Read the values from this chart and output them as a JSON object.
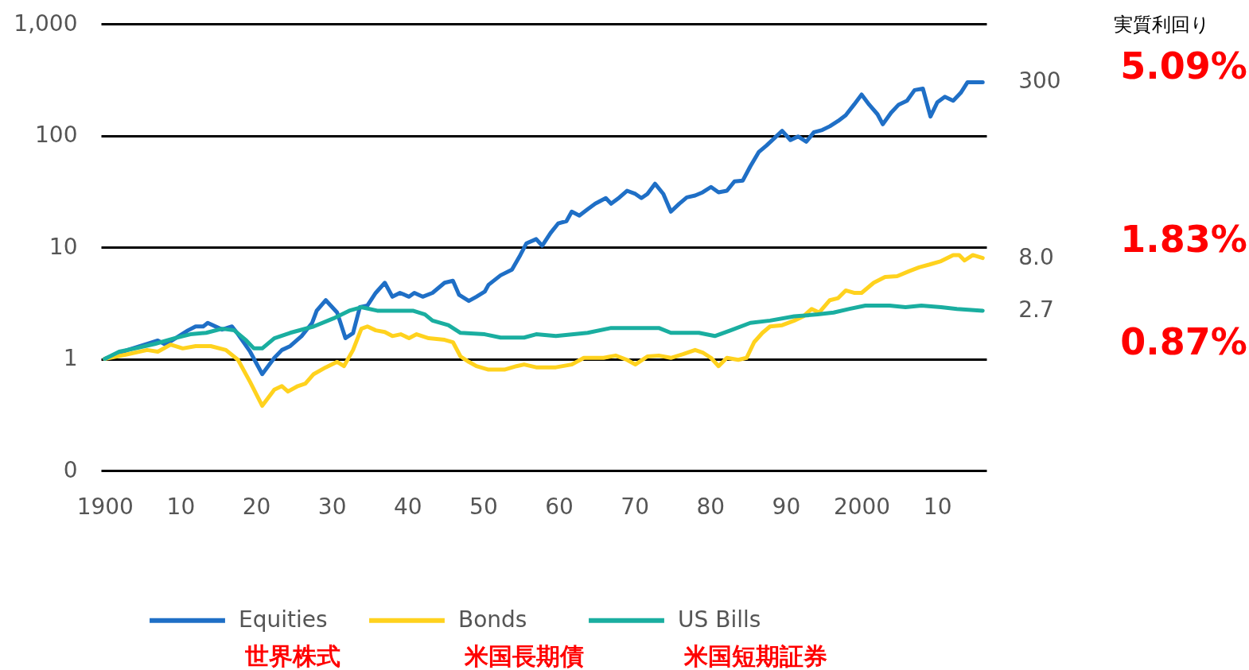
{
  "chart_data": {
    "type": "line",
    "log": "y",
    "grid": "y",
    "legend": "bottom",
    "line_style": "solid",
    "marker": "none",
    "xlim": [
      1899.5,
      2016.5
    ],
    "xticks": [
      1900,
      {
        "value": 1910,
        "label": "10"
      },
      {
        "value": 1920,
        "label": "20"
      },
      {
        "value": 1930,
        "label": "30"
      },
      {
        "value": 1940,
        "label": "40"
      },
      {
        "value": 1950,
        "label": "50"
      },
      {
        "value": 1960,
        "label": "60"
      },
      {
        "value": 1970,
        "label": "70"
      },
      {
        "value": 1980,
        "label": "80"
      },
      {
        "value": 1990,
        "label": "90"
      },
      2000,
      {
        "value": 2010,
        "label": "10"
      }
    ],
    "ylim": [
      0.1,
      1000
    ],
    "yticks": [
      {
        "value": 0.1,
        "label": "0"
      },
      1,
      10,
      100,
      {
        "value": 1000,
        "label": "1,000"
      }
    ],
    "series": [
      {
        "name": "Equities",
        "color": "#1f6fc6",
        "x": [
          1900,
          1903,
          1905.6,
          1907,
          1908,
          1911,
          1912,
          1913,
          1913.6,
          1915.5,
          1916.8,
          1917.6,
          1919.2,
          1920.8,
          1922.4,
          1923.4,
          1924.5,
          1926,
          1927.4,
          1928,
          1929.2,
          1930.7,
          1931.8,
          1932.8,
          1933.7,
          1934.7,
          1935.8,
          1937,
          1938,
          1939,
          1940.2,
          1940.9,
          1942,
          1943.3,
          1944.9,
          1946,
          1946.8,
          1948.1,
          1949.1,
          1950.2,
          1950.7,
          1952.3,
          1953.8,
          1954.9,
          1955.7,
          1957,
          1957.8,
          1958.9,
          1959.9,
          1961,
          1961.7,
          1962.7,
          1963.8,
          1964.8,
          1966.2,
          1966.9,
          1968,
          1969,
          1970.1,
          1970.9,
          1971.7,
          1972.7,
          1973.8,
          1974.8,
          1975.9,
          1976.9,
          1978,
          1979,
          1980.1,
          1981.1,
          1982.2,
          1983.2,
          1984.3,
          1985.3,
          1986.4,
          1987.4,
          1988.5,
          1989.5,
          1990.6,
          1991.6,
          1992.7,
          1993.7,
          1994.8,
          1995.8,
          1996.9,
          1997.9,
          1999,
          2000,
          2001,
          2002.1,
          2002.8,
          2003.9,
          2004.9,
          2006,
          2007,
          2008.1,
          2009.1,
          2010,
          2011,
          2012.1,
          2013.1,
          2014,
          2016
        ],
        "values": [
          1,
          1.2,
          1.36,
          1.46,
          1.34,
          1.8,
          1.95,
          1.95,
          2.1,
          1.83,
          1.95,
          1.66,
          1.16,
          0.73,
          1.02,
          1.2,
          1.3,
          1.6,
          2.1,
          2.7,
          3.35,
          2.6,
          1.53,
          1.7,
          2.9,
          3.0,
          3.9,
          4.8,
          3.6,
          3.9,
          3.6,
          3.9,
          3.6,
          3.9,
          4.8,
          5.0,
          3.75,
          3.3,
          3.6,
          4.0,
          4.6,
          5.6,
          6.3,
          8.5,
          10.8,
          11.8,
          10.3,
          13.4,
          16.3,
          17.1,
          20.8,
          19.2,
          21.9,
          24.5,
          27.5,
          24.5,
          27.9,
          32,
          30,
          27.5,
          30,
          37,
          30,
          20.8,
          24.5,
          27.9,
          29,
          31,
          34.6,
          31,
          32,
          38.8,
          39.5,
          53,
          71,
          81,
          95,
          110,
          91,
          98,
          88,
          107,
          112,
          121,
          135,
          152,
          189,
          233,
          189,
          155,
          126,
          160,
          189,
          205,
          255,
          263,
          148,
          198,
          222,
          205,
          241,
          300,
          300
        ]
      },
      {
        "name": "Bonds",
        "color": "#ffd21e",
        "x": [
          1900,
          1903,
          1905.6,
          1907,
          1908.7,
          1910.3,
          1912,
          1914,
          1916,
          1917.6,
          1919.2,
          1920.8,
          1922.4,
          1923.4,
          1924.2,
          1925.5,
          1926.5,
          1927.6,
          1929.2,
          1930.7,
          1931.6,
          1932.8,
          1933.9,
          1934.7,
          1935.8,
          1937,
          1938,
          1939.1,
          1940.2,
          1941.2,
          1942.8,
          1944.9,
          1946,
          1947,
          1948.1,
          1949.1,
          1950.7,
          1952.8,
          1954.4,
          1955.4,
          1957,
          1959.6,
          1961.7,
          1963.3,
          1965.9,
          1967.5,
          1969,
          1970.1,
          1971.7,
          1973.2,
          1974.8,
          1976.4,
          1978,
          1979,
          1980.1,
          1981.1,
          1982.2,
          1983.7,
          1984.8,
          1985.8,
          1986.9,
          1987.9,
          1989.5,
          1991.1,
          1992.3,
          1993.4,
          1994.4,
          1995.8,
          1996.9,
          1997.9,
          1999,
          2000,
          2001.6,
          2003.1,
          2004.7,
          2006.3,
          2007.6,
          2009,
          2010.5,
          2012.1,
          2012.9,
          2013.6,
          2014.7,
          2016
        ],
        "values": [
          1,
          1.1,
          1.2,
          1.16,
          1.34,
          1.24,
          1.3,
          1.3,
          1.2,
          0.98,
          0.62,
          0.38,
          0.53,
          0.57,
          0.51,
          0.57,
          0.6,
          0.73,
          0.84,
          0.94,
          0.86,
          1.2,
          1.86,
          1.95,
          1.8,
          1.74,
          1.6,
          1.66,
          1.53,
          1.66,
          1.53,
          1.48,
          1.41,
          1.05,
          0.94,
          0.86,
          0.8,
          0.8,
          0.86,
          0.89,
          0.84,
          0.84,
          0.89,
          1.02,
          1.02,
          1.07,
          0.98,
          0.89,
          1.05,
          1.07,
          1.02,
          1.1,
          1.2,
          1.14,
          1.02,
          0.86,
          1.02,
          0.98,
          1.02,
          1.41,
          1.71,
          1.95,
          2.0,
          2.2,
          2.4,
          2.8,
          2.6,
          3.35,
          3.5,
          4.1,
          3.9,
          3.9,
          4.8,
          5.4,
          5.5,
          6.1,
          6.6,
          7.0,
          7.5,
          8.5,
          8.5,
          7.6,
          8.5,
          8.0
        ]
      },
      {
        "name": "US Bills",
        "color": "#1aaea0",
        "x": [
          1900,
          1901.9,
          1904,
          1906.6,
          1909.2,
          1911.3,
          1913.4,
          1915.5,
          1917.1,
          1918.7,
          1919.7,
          1920.8,
          1922.4,
          1924.5,
          1927.6,
          1930.2,
          1932.3,
          1933.9,
          1936,
          1940.7,
          1942.3,
          1943.3,
          1945.4,
          1947,
          1950.2,
          1952.3,
          1955.4,
          1957,
          1959.6,
          1963.8,
          1966.9,
          1973.2,
          1974.8,
          1978.5,
          1980.6,
          1982.7,
          1985.3,
          1987.9,
          1991.1,
          1994.2,
          1996.3,
          1998.4,
          2000.5,
          2003.7,
          2005.8,
          2007.9,
          2010.5,
          2012.6,
          2016
        ],
        "values": [
          1,
          1.16,
          1.24,
          1.36,
          1.53,
          1.66,
          1.71,
          1.86,
          1.8,
          1.46,
          1.24,
          1.24,
          1.53,
          1.71,
          1.95,
          2.3,
          2.7,
          2.9,
          2.7,
          2.7,
          2.5,
          2.2,
          2.0,
          1.71,
          1.66,
          1.55,
          1.55,
          1.66,
          1.6,
          1.71,
          1.89,
          1.89,
          1.71,
          1.71,
          1.6,
          1.8,
          2.1,
          2.2,
          2.4,
          2.5,
          2.6,
          2.8,
          3.0,
          3.0,
          2.9,
          3.0,
          2.9,
          2.8,
          2.7
        ]
      }
    ],
    "annotations": [
      "300",
      "8.0",
      "2.7",
      "実質利回り",
      "5.09%",
      "1.83%",
      "0.87%",
      "世界株式",
      "米国長期債",
      "米国短期証券"
    ]
  }
}
